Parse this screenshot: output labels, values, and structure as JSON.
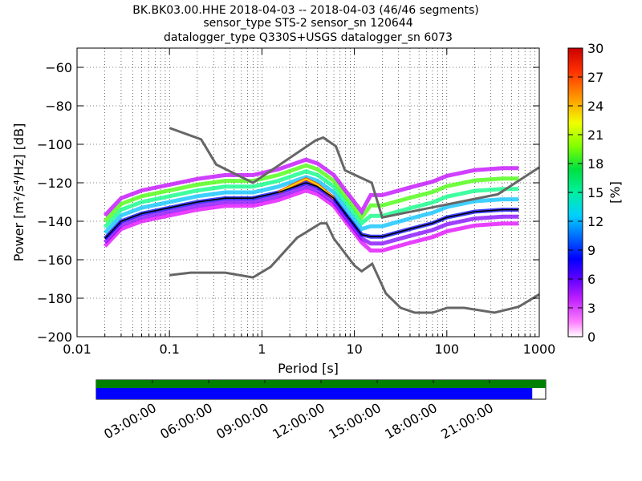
{
  "header": {
    "line1": "BK.BK03.00.HHE   2018-04-03 -- 2018-04-03  (46/46 segments)",
    "line2": "sensor_type STS-2 sensor_sn 120644",
    "line3": "datalogger_type Q330S+USGS datalogger_sn 6073"
  },
  "chart_data": [
    {
      "type": "heatmap",
      "title": "BK.BK03.00.HHE   2018-04-03 -- 2018-04-03  (46/46 segments)",
      "xlabel": "Period [s]",
      "ylabel": "Power [m²/s⁴/Hz] [dB]",
      "xscale": "log",
      "xlim": [
        0.01,
        1000
      ],
      "ylim": [
        -200,
        -50
      ],
      "x_ticks": [
        "0.01",
        "0.1",
        "1",
        "10",
        "100",
        "1000"
      ],
      "y_ticks": [
        "−60",
        "−80",
        "−100",
        "−120",
        "−140",
        "−160",
        "−180",
        "−200"
      ],
      "grid": true,
      "colorbar": {
        "label": "[%]",
        "range": [
          0,
          30
        ],
        "ticks": [
          "30",
          "27",
          "24",
          "21",
          "18",
          "15",
          "12",
          "9",
          "6",
          "3",
          "0"
        ]
      },
      "noise_models": [
        {
          "name": "high_noise",
          "points": [
            [
              0.1,
              -91.5
            ],
            [
              0.22,
              -97.4
            ],
            [
              0.32,
              -110.5
            ],
            [
              0.8,
              -120
            ],
            [
              3.8,
              -98
            ],
            [
              4.6,
              -96.5
            ],
            [
              6.3,
              -101
            ],
            [
              7.9,
              -113.5
            ],
            [
              15.4,
              -120
            ],
            [
              20,
              -138
            ],
            [
              354.8,
              -126
            ],
            [
              1000,
              -112
            ]
          ]
        },
        {
          "name": "low_noise",
          "points": [
            [
              0.1,
              -168
            ],
            [
              0.17,
              -166.7
            ],
            [
              0.4,
              -166.7
            ],
            [
              0.8,
              -169.2
            ],
            [
              1.24,
              -163.7
            ],
            [
              2.4,
              -148.6
            ],
            [
              4.3,
              -141.1
            ],
            [
              5,
              -141.1
            ],
            [
              6,
              -149
            ],
            [
              10,
              -163
            ],
            [
              12,
              -166
            ],
            [
              15.6,
              -162.1
            ],
            [
              21.9,
              -177.5
            ],
            [
              31.6,
              -185
            ],
            [
              45,
              -187.5
            ],
            [
              70,
              -187.5
            ],
            [
              101,
              -185
            ],
            [
              154,
              -185
            ],
            [
              328,
              -187.5
            ],
            [
              600,
              -184.4
            ],
            [
              1000,
              -178
            ]
          ]
        }
      ],
      "median_psd": {
        "points": [
          [
            0.02,
            -149
          ],
          [
            0.03,
            -140
          ],
          [
            0.05,
            -136
          ],
          [
            0.1,
            -133
          ],
          [
            0.2,
            -130
          ],
          [
            0.4,
            -128
          ],
          [
            0.8,
            -128
          ],
          [
            1.5,
            -125
          ],
          [
            3,
            -120
          ],
          [
            4,
            -122
          ],
          [
            6,
            -128
          ],
          [
            8,
            -136
          ],
          [
            10,
            -142
          ],
          [
            12,
            -147
          ],
          [
            15,
            -148
          ],
          [
            20,
            -148
          ],
          [
            40,
            -144
          ],
          [
            70,
            -141
          ],
          [
            100,
            -138
          ],
          [
            200,
            -135
          ],
          [
            400,
            -134
          ],
          [
            600,
            -134
          ]
        ]
      },
      "band_fan": {
        "periods": [
          0.02,
          0.03,
          0.05,
          0.1,
          0.2,
          0.4,
          0.8,
          1.5,
          3,
          4,
          6,
          8,
          10,
          12,
          15,
          20,
          40,
          70,
          100,
          200,
          400,
          600
        ],
        "offsets_db": [
          -4,
          -2,
          0,
          3,
          6,
          9,
          12
        ]
      }
    },
    {
      "type": "bar",
      "title": "",
      "description_ticks": [
        "03:00:00",
        "06:00:00",
        "09:00:00",
        "12:00:00",
        "15:00:00",
        "18:00:00",
        "21:00:00"
      ],
      "coverage": [
        {
          "name": "data",
          "fraction": 1.0,
          "color": "#008000"
        },
        {
          "name": "used",
          "fraction": 0.97,
          "color": "#0000ff"
        }
      ]
    }
  ],
  "colors": {
    "noise_model": "#666666",
    "median": "#000000",
    "data_bar": "#008000",
    "used_bar": "#0000ff"
  }
}
